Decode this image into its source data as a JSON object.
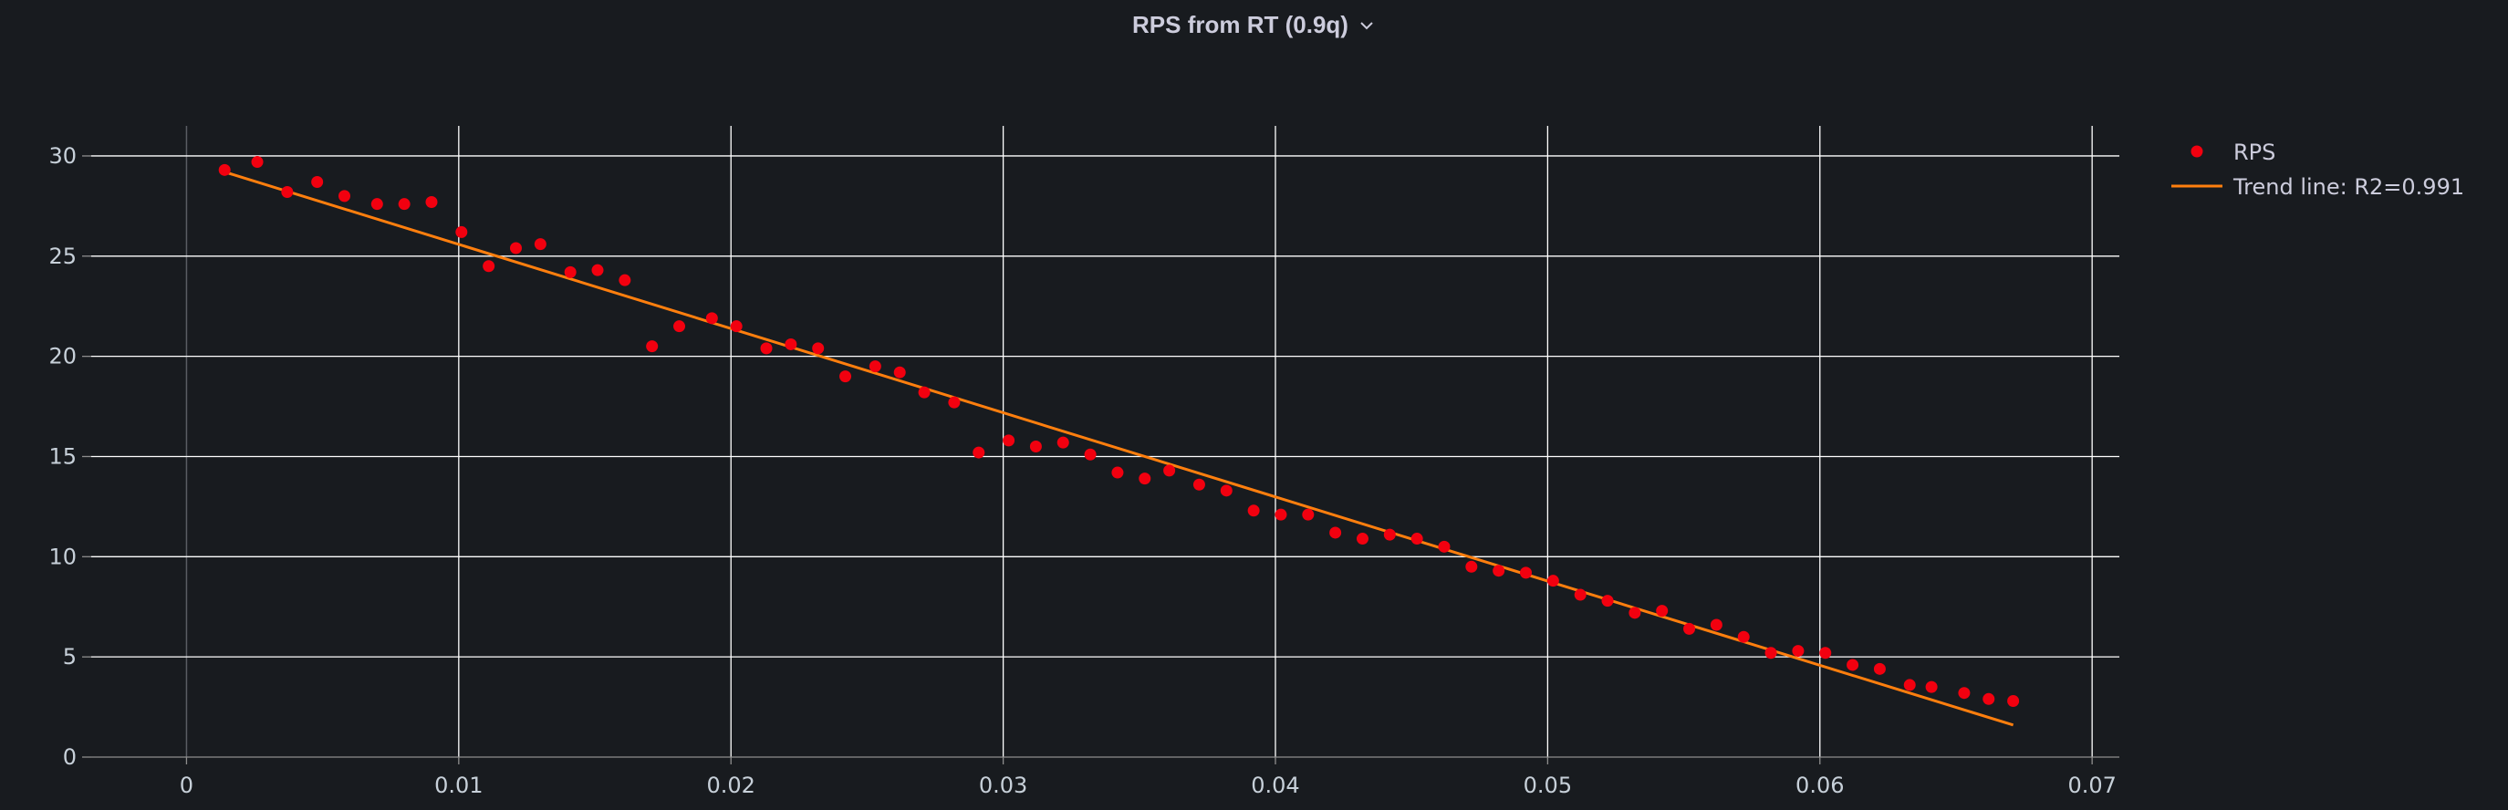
{
  "panel": {
    "title": "RPS from RT (0.9q)",
    "menu_icon": "chevron-down-icon"
  },
  "colors": {
    "background": "#181b1f",
    "grid": "#ffffff",
    "points": "#f2000f",
    "trend": "#ff7f0e",
    "text": "#ccccdc"
  },
  "chart_data": {
    "type": "scatter",
    "title": "RPS from RT (0.9q)",
    "xlabel": "",
    "ylabel": "",
    "xlim": [
      -0.0035,
      0.071
    ],
    "ylim": [
      0,
      31.5
    ],
    "xticks": [
      0,
      0.01,
      0.02,
      0.03,
      0.04,
      0.05,
      0.06,
      0.07
    ],
    "xtick_labels": [
      "0",
      "0.01",
      "0.02",
      "0.03",
      "0.04",
      "0.05",
      "0.06",
      "0.07"
    ],
    "yticks": [
      0,
      5,
      10,
      15,
      20,
      25,
      30
    ],
    "ytick_labels": [
      "0",
      "5",
      "10",
      "15",
      "20",
      "25",
      "30"
    ],
    "grid": true,
    "legend_position": "top-right",
    "series": [
      {
        "name": "RPS",
        "kind": "markers",
        "color": "#f2000f",
        "x": [
          0.0014,
          0.0026,
          0.0037,
          0.0048,
          0.0058,
          0.007,
          0.008,
          0.009,
          0.0101,
          0.0111,
          0.0121,
          0.013,
          0.0141,
          0.0151,
          0.0161,
          0.0171,
          0.0181,
          0.0193,
          0.0202,
          0.0213,
          0.0222,
          0.0232,
          0.0242,
          0.0253,
          0.0262,
          0.0271,
          0.0282,
          0.0291,
          0.0302,
          0.0312,
          0.0322,
          0.0332,
          0.0342,
          0.0352,
          0.0361,
          0.0372,
          0.0382,
          0.0392,
          0.0402,
          0.0412,
          0.0422,
          0.0432,
          0.0442,
          0.0452,
          0.0462,
          0.0472,
          0.0482,
          0.0492,
          0.0502,
          0.0512,
          0.0522,
          0.0532,
          0.0542,
          0.0552,
          0.0562,
          0.0572,
          0.0582,
          0.0592,
          0.0602,
          0.0612,
          0.0622,
          0.0633,
          0.0641,
          0.0653,
          0.0662,
          0.0671
        ],
        "y": [
          29.3,
          29.7,
          28.2,
          28.7,
          28.0,
          27.6,
          27.6,
          27.7,
          26.2,
          24.5,
          25.4,
          25.6,
          24.2,
          24.3,
          23.8,
          20.5,
          21.5,
          21.9,
          21.5,
          20.4,
          20.6,
          20.4,
          19.0,
          19.5,
          19.2,
          18.2,
          17.7,
          15.2,
          15.8,
          15.5,
          15.7,
          15.1,
          14.2,
          13.9,
          14.3,
          13.6,
          13.3,
          12.3,
          12.1,
          12.1,
          11.2,
          10.9,
          11.1,
          10.9,
          10.5,
          9.5,
          9.3,
          9.2,
          8.8,
          8.1,
          7.8,
          7.2,
          7.3,
          6.4,
          6.6,
          6.0,
          5.2,
          5.3,
          5.2,
          4.6,
          4.4,
          3.6,
          3.5,
          3.2,
          2.9,
          2.8
        ]
      },
      {
        "name": "Trend line: R2=0.991",
        "kind": "line",
        "color": "#ff7f0e",
        "x": [
          0.0014,
          0.0671
        ],
        "y": [
          29.2,
          1.6
        ]
      }
    ]
  }
}
